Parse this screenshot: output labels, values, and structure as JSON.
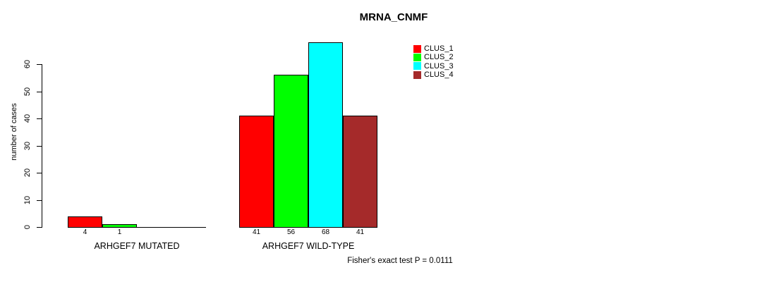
{
  "title": "MRNA_CNMF",
  "chart_data": {
    "type": "bar",
    "title": "MRNA_CNMF",
    "xlabel": "",
    "ylabel": "number of cases",
    "ylim": [
      0,
      68
    ],
    "yticks": [
      0,
      10,
      20,
      30,
      40,
      50,
      60
    ],
    "grid": false,
    "categories": [
      "ARHGEF7 MUTATED",
      "ARHGEF7 WILD-TYPE"
    ],
    "series": [
      {
        "name": "CLUS_1",
        "color": "#FF0000",
        "values": [
          4,
          41
        ]
      },
      {
        "name": "CLUS_2",
        "color": "#00FF00",
        "values": [
          1,
          56
        ]
      },
      {
        "name": "CLUS_3",
        "color": "#00FFFF",
        "values": [
          0,
          68
        ]
      },
      {
        "name": "CLUS_4",
        "color": "#A52A2A",
        "values": [
          0,
          41
        ]
      }
    ],
    "bar_value_labels": [
      [
        "4",
        "1",
        "",
        ""
      ],
      [
        "41",
        "56",
        "68",
        "41"
      ]
    ],
    "legend_position": "top-right-inside",
    "annotation": "Fisher's exact test P = 0.0111"
  }
}
